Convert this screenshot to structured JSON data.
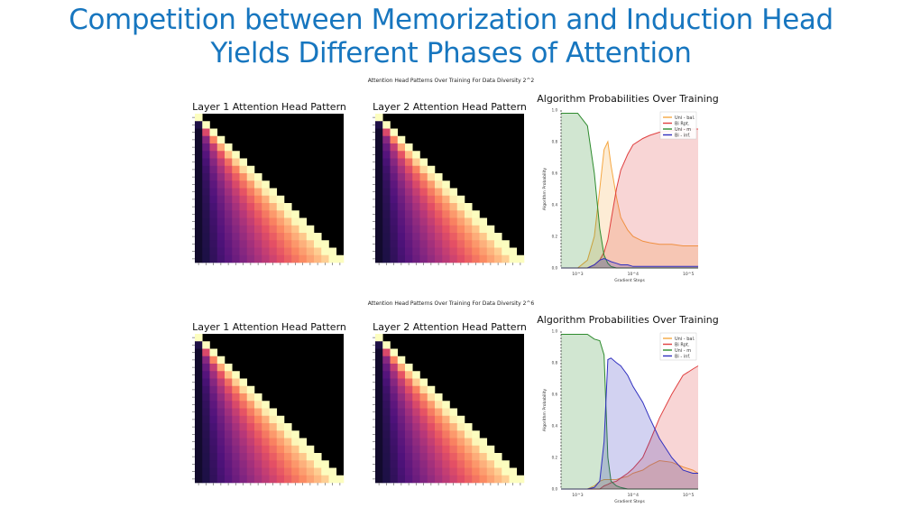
{
  "slide": {
    "title_line1": "Competition between Memorization and Induction Head",
    "title_line2": "Yields Different Phases of Attention",
    "accent_color": "#1776bf"
  },
  "panels": [
    {
      "title": "Attention Head Patterns Over Training For Data Diversity 2^2",
      "heatmaps": [
        {
          "title": "Layer 1 Attention Head Pattern"
        },
        {
          "title": "Layer 2 Attention Head Pattern"
        }
      ]
    },
    {
      "title": "Attention Head Patterns Over Training For Data Diversity 2^6",
      "heatmaps": [
        {
          "title": "Layer 1 Attention Head Pattern"
        },
        {
          "title": "Layer 2 Attention Head Pattern"
        }
      ]
    }
  ],
  "chart_data": [
    {
      "type": "heatmap",
      "title": "Layer 1 Attention Head Pattern",
      "size": 20,
      "colormap": "magma",
      "lower_triangular": true
    },
    {
      "type": "heatmap",
      "title": "Layer 2 Attention Head Pattern",
      "size": 20,
      "colormap": "magma",
      "lower_triangular": true
    },
    {
      "type": "area",
      "title": "Algorithm Probabilities Over Training",
      "xlabel": "Gradient Steps",
      "ylabel": "Algorithm Probability",
      "x_scale": "log",
      "xlim": [
        500,
        150000
      ],
      "ylim": [
        0,
        1.0
      ],
      "x_ticks": [
        "10^3",
        "10^4",
        "10^5"
      ],
      "y_ticks": [
        "0.0",
        "0.2",
        "0.4",
        "0.6",
        "0.8",
        "1.0"
      ],
      "legend": "top-right",
      "x": [
        500,
        1000,
        1500,
        2000,
        2500,
        3000,
        3500,
        4000,
        5000,
        6000,
        8000,
        10000,
        15000,
        20000,
        30000,
        50000,
        80000,
        120000,
        150000
      ],
      "series": [
        {
          "name": "Uni - bal.",
          "color": "#f5a742",
          "values": [
            0.0,
            0.0,
            0.05,
            0.2,
            0.5,
            0.75,
            0.8,
            0.65,
            0.45,
            0.32,
            0.24,
            0.2,
            0.17,
            0.16,
            0.15,
            0.15,
            0.14,
            0.14,
            0.14
          ]
        },
        {
          "name": "Bi Rpt.",
          "color": "#e04040",
          "values": [
            0.0,
            0.0,
            0.0,
            0.02,
            0.05,
            0.1,
            0.18,
            0.3,
            0.5,
            0.62,
            0.72,
            0.78,
            0.82,
            0.84,
            0.86,
            0.87,
            0.88,
            0.88,
            0.88
          ]
        },
        {
          "name": "Uni - m",
          "color": "#2e8b2e",
          "values": [
            0.98,
            0.98,
            0.9,
            0.6,
            0.25,
            0.08,
            0.03,
            0.01,
            0.0,
            0.0,
            0.0,
            0.0,
            0.0,
            0.0,
            0.0,
            0.0,
            0.0,
            0.0,
            0.0
          ]
        },
        {
          "name": "Bi - inf.",
          "color": "#3030c0",
          "values": [
            0.0,
            0.0,
            0.0,
            0.02,
            0.05,
            0.06,
            0.05,
            0.04,
            0.03,
            0.02,
            0.02,
            0.01,
            0.01,
            0.01,
            0.01,
            0.01,
            0.01,
            0.01,
            0.01
          ]
        }
      ]
    },
    {
      "type": "heatmap",
      "title": "Layer 1 Attention Head Pattern",
      "size": 20,
      "colormap": "magma",
      "lower_triangular": true
    },
    {
      "type": "heatmap",
      "title": "Layer 2 Attention Head Pattern",
      "size": 20,
      "colormap": "magma",
      "lower_triangular": true
    },
    {
      "type": "area",
      "title": "Algorithm Probabilities Over Training",
      "xlabel": "Gradient Steps",
      "ylabel": "Algorithm Probability",
      "x_scale": "log",
      "xlim": [
        500,
        150000
      ],
      "ylim": [
        0,
        1.0
      ],
      "x_ticks": [
        "10^3",
        "10^4",
        "10^5"
      ],
      "y_ticks": [
        "0.0",
        "0.2",
        "0.4",
        "0.6",
        "0.8",
        "1.0"
      ],
      "legend": "top-right",
      "x": [
        500,
        1000,
        1500,
        2000,
        2500,
        3000,
        3500,
        4000,
        5000,
        6000,
        8000,
        10000,
        15000,
        20000,
        30000,
        50000,
        80000,
        120000,
        150000
      ],
      "series": [
        {
          "name": "Uni - bal.",
          "color": "#f5a742",
          "values": [
            0.0,
            0.0,
            0.0,
            0.02,
            0.05,
            0.06,
            0.06,
            0.06,
            0.06,
            0.07,
            0.08,
            0.1,
            0.12,
            0.15,
            0.18,
            0.17,
            0.14,
            0.12,
            0.1
          ]
        },
        {
          "name": "Bi Rpt.",
          "color": "#e04040",
          "values": [
            0.0,
            0.0,
            0.0,
            0.0,
            0.0,
            0.02,
            0.03,
            0.04,
            0.05,
            0.07,
            0.1,
            0.13,
            0.2,
            0.3,
            0.45,
            0.6,
            0.72,
            0.76,
            0.78
          ]
        },
        {
          "name": "Uni - m",
          "color": "#2e8b2e",
          "values": [
            0.98,
            0.98,
            0.98,
            0.95,
            0.94,
            0.85,
            0.2,
            0.05,
            0.02,
            0.01,
            0.0,
            0.0,
            0.0,
            0.0,
            0.0,
            0.0,
            0.0,
            0.0,
            0.0
          ]
        },
        {
          "name": "Bi - inf.",
          "color": "#3030c0",
          "values": [
            0.0,
            0.0,
            0.0,
            0.01,
            0.05,
            0.3,
            0.82,
            0.83,
            0.8,
            0.78,
            0.72,
            0.65,
            0.55,
            0.45,
            0.32,
            0.2,
            0.12,
            0.1,
            0.1
          ]
        }
      ]
    }
  ]
}
